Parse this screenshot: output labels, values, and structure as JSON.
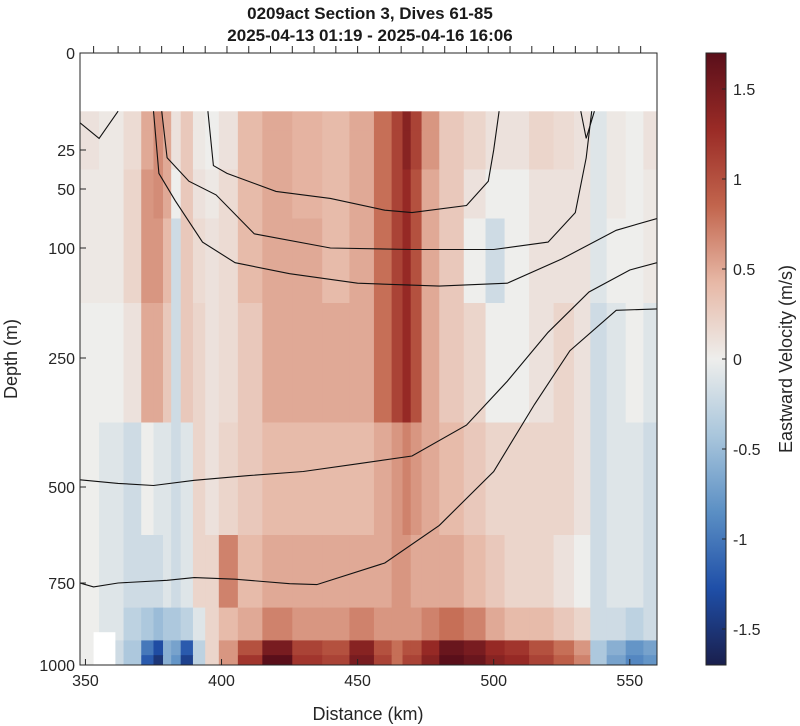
{
  "chart_data": {
    "type": "heatmap",
    "title": "0209act Section 3, Dives 61-85",
    "subtitle": "2025-04-13 01:19 - 2025-04-16 16:06",
    "xlabel": "Distance (km)",
    "ylabel": "Depth (m)",
    "colorbar_label": "Eastward Velocity (m/s)",
    "xlim": [
      348,
      560
    ],
    "ylim": [
      0,
      1000
    ],
    "x_ticks": [
      "350",
      "400",
      "450",
      "500",
      "550"
    ],
    "y_ticks": [
      "0",
      "25",
      "50",
      "100",
      "250",
      "500",
      "750",
      "1000"
    ],
    "colorbar_ticks": [
      "1.5",
      "1",
      "0.5",
      "0",
      "-0.5",
      "-1",
      "-1.5"
    ],
    "clim": [
      -1.7,
      1.7
    ],
    "colormap": [
      "#1a1f4d",
      "#1f4fa8",
      "#5b8fc4",
      "#a9c6dc",
      "#eeeeec",
      "#e7b8a6",
      "#c2654d",
      "#9a2b26",
      "#5a0f1a"
    ],
    "no_data_color": "#ffffff",
    "data_top_depth_m": 15,
    "dive_ticks_x": [
      353,
      362,
      370,
      378,
      386,
      394,
      402,
      410,
      418,
      426,
      434,
      442,
      450,
      458,
      466,
      474,
      482,
      490,
      498,
      506,
      514,
      522,
      530,
      538,
      546,
      554
    ],
    "velocity_field": {
      "x": [
        350,
        360,
        368,
        373,
        377,
        380,
        383,
        387,
        392,
        396,
        402,
        410,
        420,
        432,
        442,
        452,
        460,
        465,
        468,
        471,
        476,
        484,
        494,
        500,
        508,
        518,
        526,
        533,
        538,
        545,
        552,
        558
      ],
      "depth": [
        15,
        25,
        50,
        100,
        250,
        500,
        750,
        900,
        950,
        990
      ],
      "u": [
        [
          0.1,
          0.05,
          0.15,
          0.5,
          0.65,
          0.5,
          0.1,
          0.3,
          0.05,
          0.0,
          0.1,
          0.4,
          0.5,
          0.45,
          0.4,
          0.5,
          0.8,
          1.1,
          1.4,
          1.1,
          0.6,
          0.3,
          0.2,
          0.1,
          0.1,
          0.2,
          0.15,
          0.1,
          -0.1,
          0.05,
          0.0,
          0.1
        ],
        [
          0.1,
          0.05,
          0.15,
          0.5,
          0.65,
          0.5,
          0.1,
          0.3,
          0.05,
          0.0,
          0.1,
          0.4,
          0.5,
          0.45,
          0.4,
          0.5,
          0.8,
          1.1,
          1.4,
          1.1,
          0.6,
          0.3,
          0.2,
          0.1,
          0.1,
          0.2,
          0.15,
          0.1,
          -0.1,
          0.05,
          0.0,
          0.1
        ],
        [
          0.05,
          0.05,
          0.2,
          0.6,
          0.65,
          0.5,
          0.0,
          0.3,
          0.1,
          0.05,
          0.15,
          0.4,
          0.5,
          0.45,
          0.4,
          0.5,
          0.8,
          1.1,
          1.3,
          1.0,
          0.5,
          0.3,
          0.1,
          0.0,
          0.0,
          0.1,
          0.1,
          0.1,
          -0.1,
          0.05,
          0.0,
          0.05
        ],
        [
          0.05,
          0.05,
          0.2,
          0.6,
          0.6,
          0.4,
          -0.2,
          0.3,
          0.15,
          0.1,
          0.15,
          0.4,
          0.5,
          0.5,
          0.4,
          0.5,
          0.8,
          1.1,
          1.3,
          1.0,
          0.5,
          0.3,
          0.0,
          -0.2,
          0.0,
          0.1,
          0.1,
          0.1,
          -0.1,
          0.0,
          0.0,
          0.05
        ],
        [
          0.0,
          0.0,
          0.1,
          0.5,
          0.5,
          0.3,
          -0.2,
          0.3,
          0.2,
          0.1,
          0.15,
          0.3,
          0.5,
          0.5,
          0.5,
          0.5,
          0.8,
          1.1,
          1.3,
          1.0,
          0.5,
          0.3,
          0.2,
          0.0,
          0.0,
          0.1,
          0.2,
          0.1,
          -0.2,
          -0.1,
          0.0,
          -0.1
        ],
        [
          0.0,
          -0.1,
          -0.2,
          0.0,
          -0.1,
          -0.1,
          -0.2,
          -0.1,
          0.2,
          0.1,
          0.2,
          0.3,
          0.4,
          0.4,
          0.4,
          0.4,
          0.5,
          0.6,
          0.7,
          0.6,
          0.5,
          0.4,
          0.3,
          0.2,
          0.2,
          0.2,
          0.2,
          0.1,
          -0.2,
          -0.1,
          -0.1,
          -0.2
        ],
        [
          0.0,
          -0.1,
          -0.2,
          -0.2,
          -0.2,
          -0.1,
          -0.2,
          -0.1,
          0.2,
          0.2,
          0.7,
          0.4,
          0.5,
          0.5,
          0.5,
          0.5,
          0.5,
          0.6,
          0.6,
          0.5,
          0.5,
          0.5,
          0.4,
          0.3,
          0.2,
          0.2,
          0.1,
          0.0,
          -0.2,
          -0.1,
          -0.1,
          -0.2
        ],
        [
          0.0,
          -0.1,
          -0.3,
          -0.4,
          -0.5,
          -0.4,
          -0.4,
          -0.3,
          -0.1,
          0.2,
          0.4,
          0.5,
          0.7,
          0.6,
          0.6,
          0.7,
          0.6,
          0.6,
          0.6,
          0.6,
          0.7,
          0.8,
          0.7,
          0.5,
          0.4,
          0.4,
          0.3,
          0.2,
          -0.2,
          -0.2,
          -0.3,
          -0.2
        ],
        [
          0.0,
          -0.2,
          -0.4,
          -1.0,
          -1.3,
          -0.6,
          -0.7,
          -1.2,
          -0.3,
          0.2,
          0.6,
          1.0,
          1.5,
          1.1,
          1.0,
          1.4,
          1.0,
          0.8,
          1.0,
          1.0,
          1.3,
          1.6,
          1.5,
          1.3,
          1.2,
          1.0,
          0.8,
          0.6,
          -0.4,
          -0.6,
          -0.8,
          -0.7
        ],
        [
          0.0,
          -0.2,
          -0.4,
          -1.2,
          -1.5,
          -0.6,
          -0.8,
          -1.4,
          -0.3,
          0.2,
          0.6,
          1.2,
          1.7,
          1.2,
          1.1,
          1.5,
          1.1,
          0.8,
          1.1,
          1.1,
          1.4,
          1.7,
          1.6,
          1.4,
          1.3,
          1.1,
          0.9,
          0.7,
          -0.4,
          -0.7,
          -0.9,
          -0.8
        ]
      ]
    },
    "contours": [
      {
        "name": "",
        "points": [
          [
            348,
            18
          ],
          [
            355,
            22
          ],
          [
            362,
            15
          ]
        ]
      },
      {
        "name": "",
        "points": [
          [
            395,
            15
          ],
          [
            397,
            35
          ],
          [
            402,
            40
          ],
          [
            420,
            52
          ],
          [
            440,
            58
          ],
          [
            460,
            68
          ],
          [
            470,
            70
          ],
          [
            490,
            64
          ],
          [
            498,
            45
          ],
          [
            500,
            25
          ],
          [
            502,
            15
          ]
        ]
      },
      {
        "name": "",
        "points": [
          [
            378,
            15
          ],
          [
            380,
            30
          ],
          [
            388,
            45
          ],
          [
            398,
            55
          ],
          [
            412,
            88
          ],
          [
            440,
            100
          ],
          [
            470,
            102
          ],
          [
            500,
            102
          ],
          [
            520,
            95
          ],
          [
            530,
            70
          ],
          [
            534,
            30
          ],
          [
            536,
            15
          ]
        ]
      },
      {
        "name": "",
        "points": [
          [
            375,
            15
          ],
          [
            377,
            40
          ],
          [
            383,
            60
          ],
          [
            393,
            95
          ],
          [
            405,
            120
          ],
          [
            425,
            135
          ],
          [
            450,
            148
          ],
          [
            480,
            152
          ],
          [
            505,
            148
          ],
          [
            525,
            115
          ],
          [
            545,
            85
          ],
          [
            560,
            75
          ]
        ]
      },
      {
        "name": "",
        "points": [
          [
            348,
            486
          ],
          [
            362,
            493
          ],
          [
            375,
            497
          ],
          [
            390,
            487
          ],
          [
            410,
            478
          ],
          [
            430,
            470
          ],
          [
            450,
            455
          ],
          [
            470,
            440
          ],
          [
            490,
            380
          ],
          [
            505,
            295
          ],
          [
            520,
            215
          ],
          [
            535,
            160
          ],
          [
            550,
            130
          ],
          [
            560,
            120
          ]
        ]
      },
      {
        "name": "",
        "points": [
          [
            348,
            750
          ],
          [
            353,
            762
          ],
          [
            362,
            750
          ],
          [
            380,
            743
          ],
          [
            390,
            736
          ],
          [
            405,
            740
          ],
          [
            425,
            752
          ],
          [
            435,
            755
          ],
          [
            460,
            698
          ],
          [
            480,
            600
          ],
          [
            500,
            470
          ],
          [
            515,
            340
          ],
          [
            528,
            240
          ],
          [
            545,
            185
          ],
          [
            560,
            183
          ]
        ]
      },
      {
        "name": "",
        "points": [
          [
            532,
            15
          ],
          [
            534,
            22
          ],
          [
            537,
            15
          ]
        ]
      }
    ],
    "no_data_patches": [
      {
        "x": [
          348,
          560
        ],
        "depth": [
          0,
          15
        ]
      },
      {
        "x": [
          353,
          361
        ],
        "depth": [
          900,
          1000
        ]
      }
    ]
  }
}
